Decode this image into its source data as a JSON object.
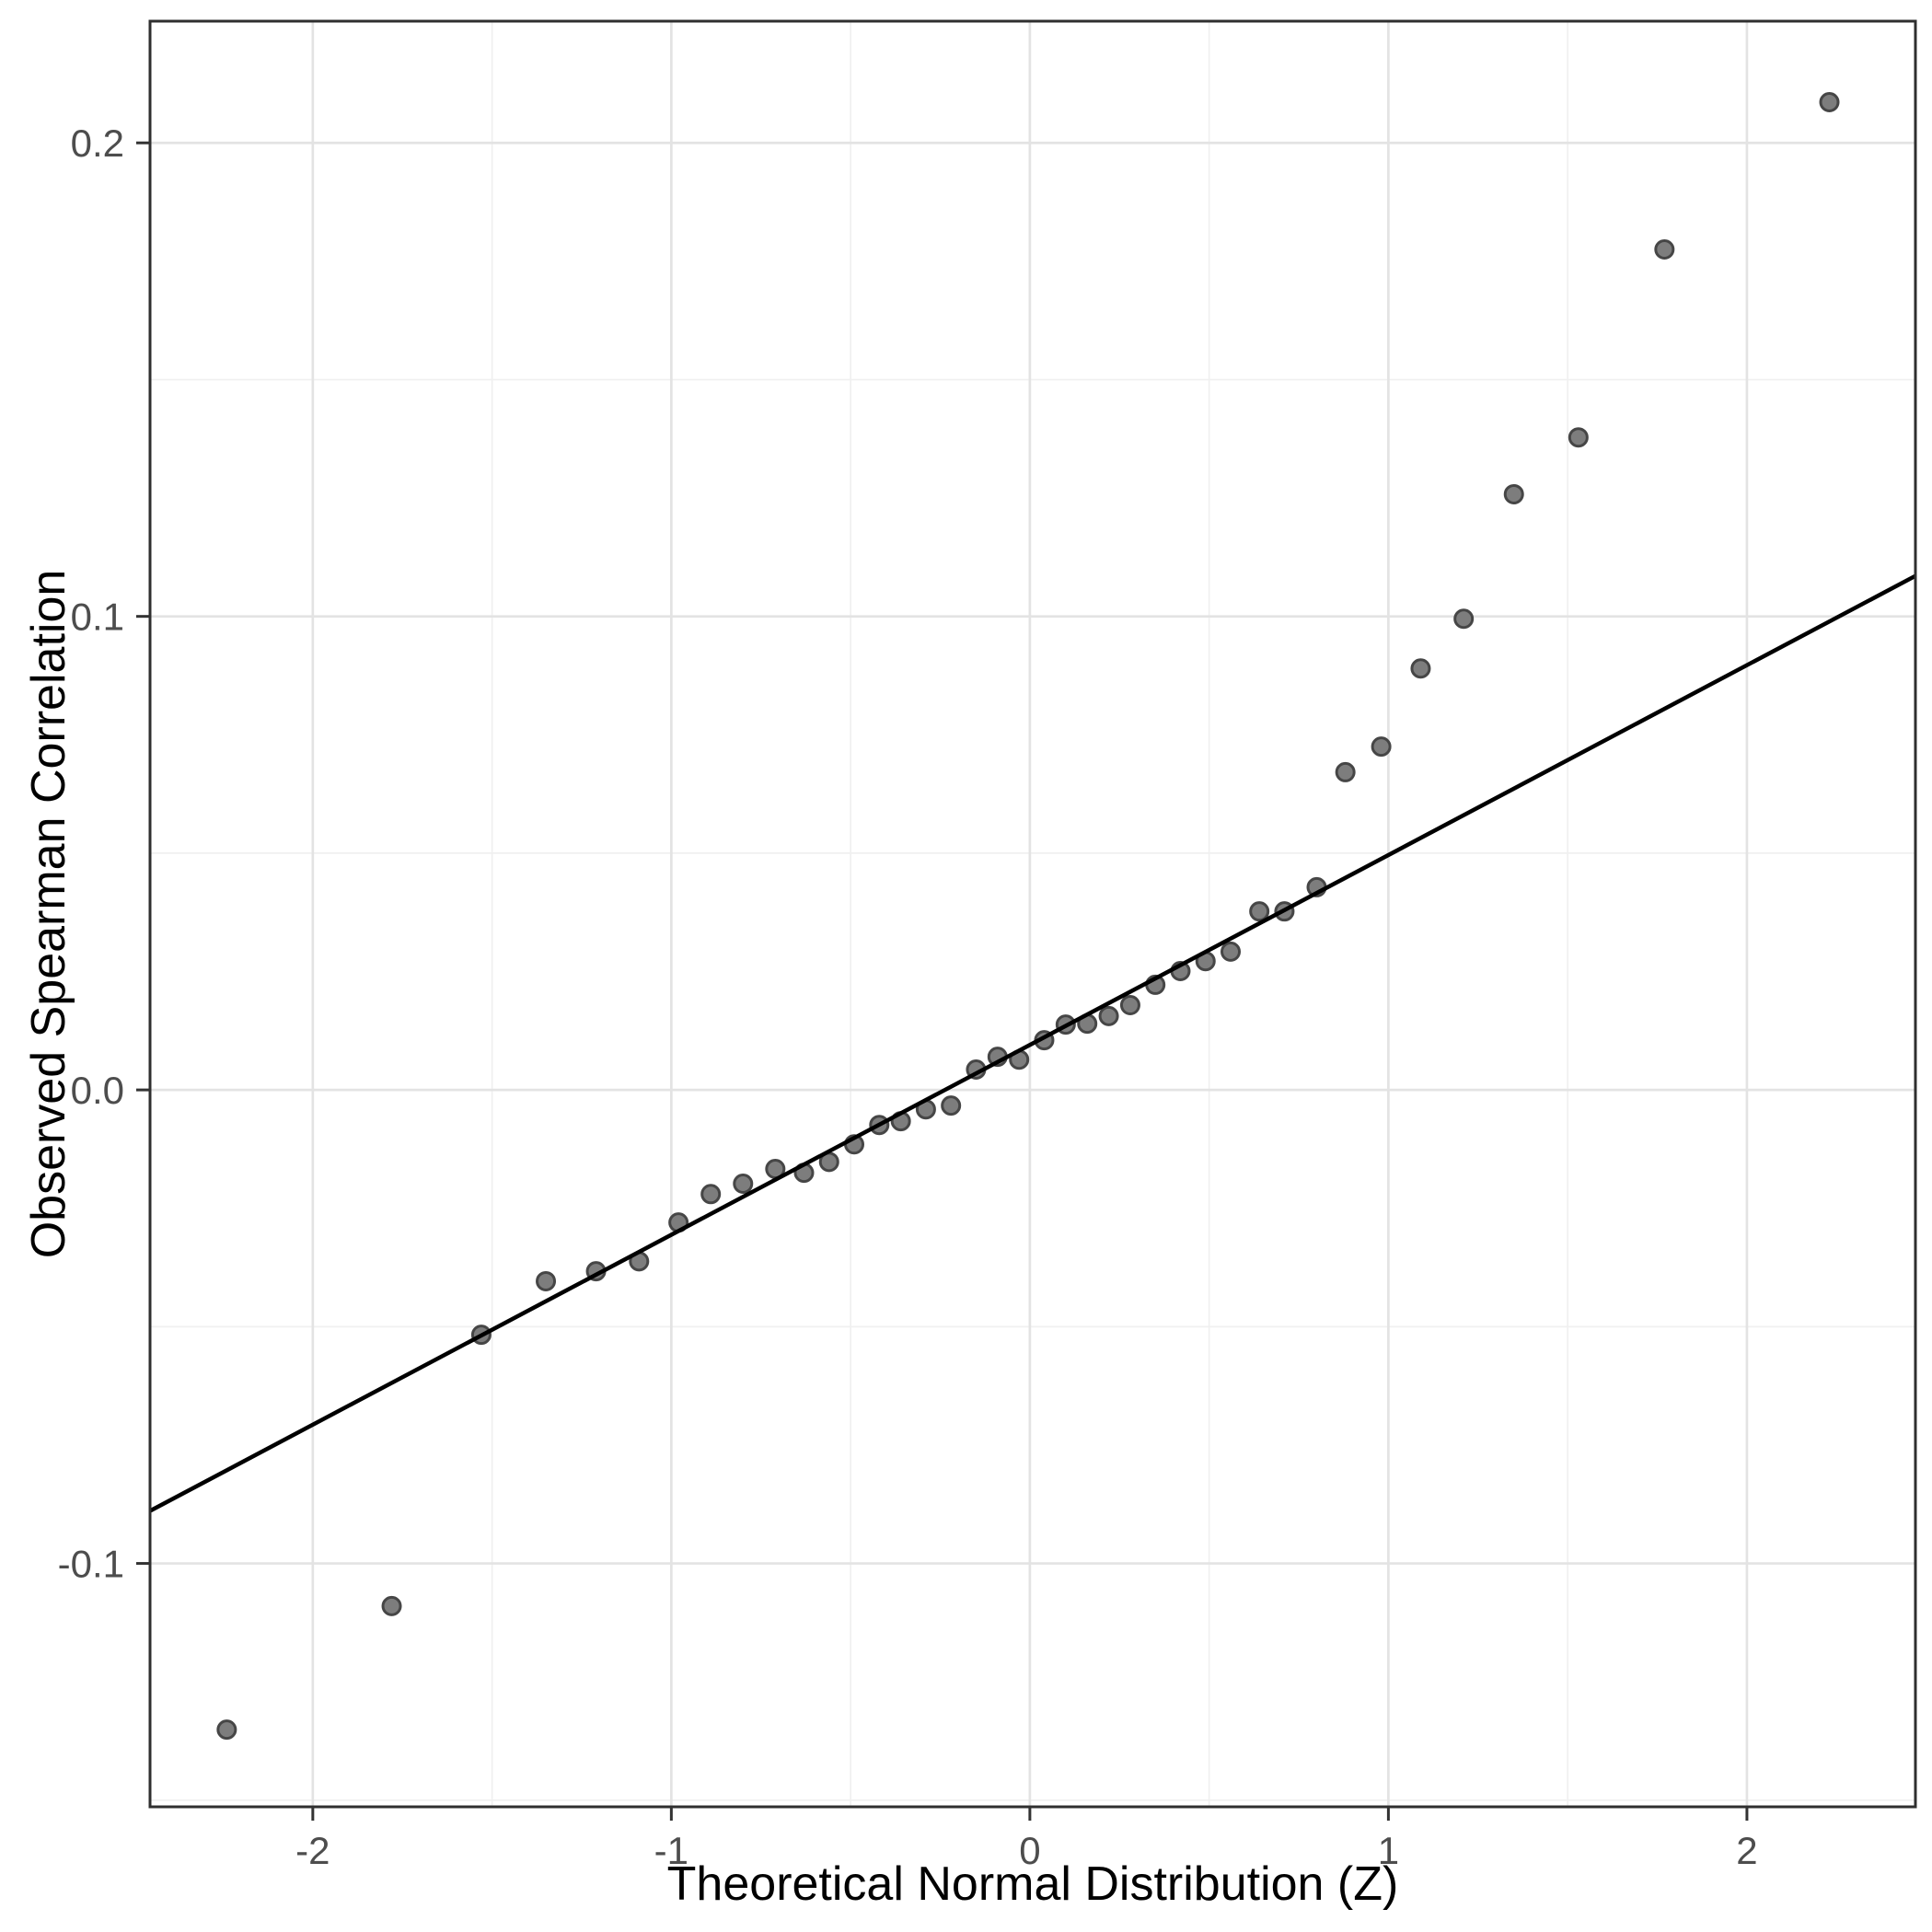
{
  "chart_data": {
    "type": "scatter",
    "title": "",
    "xlabel": "Theoretical Normal Distribution (Z)",
    "ylabel": "Observed Spearman Correlation",
    "xlim": [
      -2.454,
      2.47
    ],
    "ylim": [
      -0.1514,
      0.2257
    ],
    "grid": true,
    "legend_position": "none",
    "x_major_ticks": [
      -2,
      -1,
      0,
      1,
      2
    ],
    "x_tick_labels": [
      "-2",
      "-1",
      "0",
      "1",
      "2"
    ],
    "x_minor_ticks": [
      -1.5,
      -0.5,
      0.5,
      1.5
    ],
    "y_major_ticks": [
      0.2,
      0.1,
      0.0,
      -0.1
    ],
    "y_tick_labels": [
      "0.2",
      "0.1",
      "0.0",
      "-0.1"
    ],
    "y_minor_ticks": [
      0.15,
      0.05,
      -0.05,
      -0.15
    ],
    "series": [
      {
        "name": "observed-vs-theoretical-quantiles",
        "points": [
          [
            -2.24,
            -0.1351
          ],
          [
            -1.78,
            -0.109
          ],
          [
            -1.53,
            -0.0517
          ],
          [
            -1.35,
            -0.0404
          ],
          [
            -1.21,
            -0.0383
          ],
          [
            -1.09,
            -0.0362
          ],
          [
            -0.98,
            -0.028
          ],
          [
            -0.89,
            -0.022
          ],
          [
            -0.8,
            -0.0198
          ],
          [
            -0.71,
            -0.0167
          ],
          [
            -0.63,
            -0.0175
          ],
          [
            -0.56,
            -0.0152
          ],
          [
            -0.49,
            -0.0115
          ],
          [
            -0.42,
            -0.0074
          ],
          [
            -0.36,
            -0.0066
          ],
          [
            -0.29,
            -0.0041
          ],
          [
            -0.22,
            -0.0033
          ],
          [
            -0.15,
            0.0043
          ],
          [
            -0.09,
            0.007
          ],
          [
            -0.03,
            0.0064
          ],
          [
            0.04,
            0.0105
          ],
          [
            0.1,
            0.0138
          ],
          [
            0.16,
            0.014
          ],
          [
            0.22,
            0.0156
          ],
          [
            0.28,
            0.0179
          ],
          [
            0.35,
            0.0222
          ],
          [
            0.42,
            0.0251
          ],
          [
            0.49,
            0.0272
          ],
          [
            0.56,
            0.0292
          ],
          [
            0.64,
            0.0377
          ],
          [
            0.71,
            0.0377
          ],
          [
            0.8,
            0.0428
          ],
          [
            0.88,
            0.0671
          ],
          [
            0.98,
            0.0725
          ],
          [
            1.09,
            0.089
          ],
          [
            1.21,
            0.0995
          ],
          [
            1.35,
            0.1258
          ],
          [
            1.53,
            0.1378
          ],
          [
            1.77,
            0.1775
          ],
          [
            2.23,
            0.2086
          ]
        ]
      }
    ],
    "reference_line": {
      "intercept": 0.0095,
      "slope": 0.0401,
      "x_start": -2.454,
      "x_end": 2.47
    },
    "colors": {
      "background": "#ffffff",
      "panel_background": "#ffffff",
      "panel_border": "#2f2f2f",
      "grid_major": "#e3e3e3",
      "grid_minor": "#f0f0f0",
      "point_fill": "#7d7d7d",
      "point_stroke": "#464646",
      "reference_line": "#000000",
      "tick_mark": "#333333",
      "tick_label": "#4d4d4d",
      "axis_title": "#000000"
    }
  }
}
